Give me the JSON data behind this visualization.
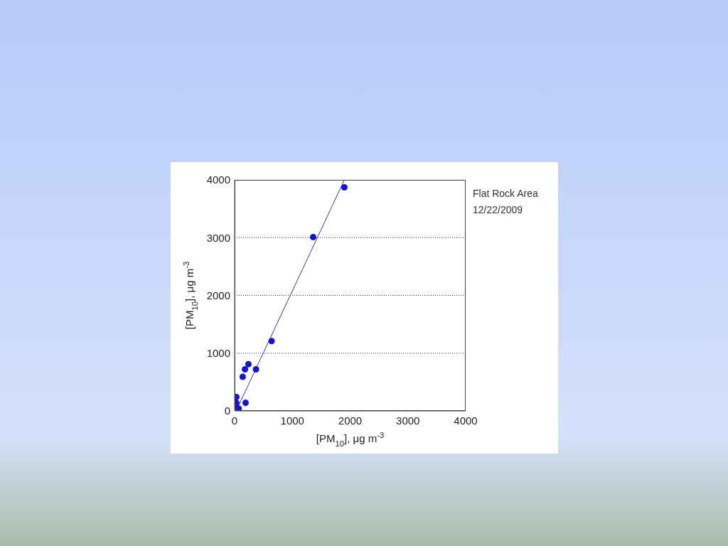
{
  "chart_data": {
    "type": "scatter",
    "xlabel": "[PM$_{10}$], μg m$^{-3}$",
    "ylabel": "[PM$_{10}$], μg m$^{-3}$",
    "annotations": [
      "Flat Rock Area",
      "12/22/2009"
    ],
    "xlim": [
      0,
      4000
    ],
    "ylim": [
      0,
      4000
    ],
    "xticks": [
      0,
      1000,
      2000,
      3000,
      4000
    ],
    "yticks": [
      0,
      1000,
      2000,
      3000,
      4000
    ],
    "grid": "y",
    "marker": "circle",
    "series": [
      {
        "color": "#1414d2",
        "x": [
          1900,
          1360,
          640,
          370,
          240,
          180,
          140,
          190,
          30,
          30,
          70,
          20
        ],
        "values": [
          3870,
          3010,
          1210,
          720,
          810,
          720,
          590,
          140,
          240,
          140,
          40,
          80
        ]
      },
      {
        "type": "line",
        "marker": "none",
        "color": "#3c3c8c",
        "x": [
          50,
          1900
        ],
        "values": [
          50,
          4000
        ]
      }
    ]
  }
}
